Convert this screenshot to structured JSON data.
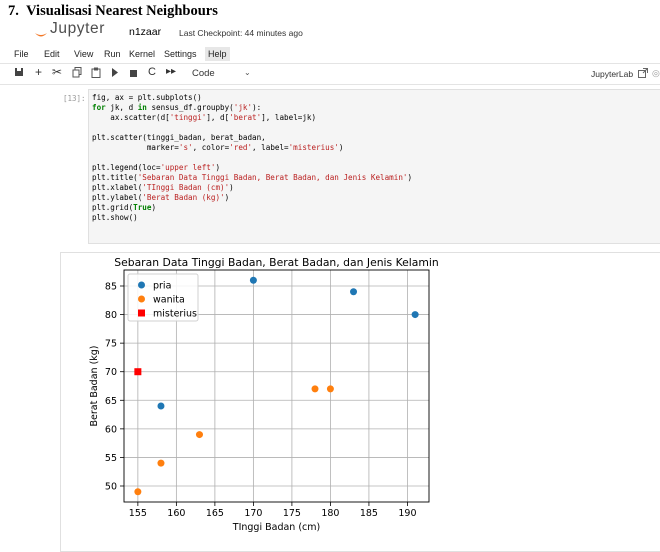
{
  "document": {
    "heading": "7.  Visualisasi Nearest Neighbours"
  },
  "header": {
    "logo_text": "Jupyter",
    "notebook_name": "n1zaar",
    "checkpoint": "Last Checkpoint: 44 minutes ago"
  },
  "menu": {
    "items": [
      "File",
      "Edit",
      "View",
      "Run",
      "Kernel",
      "Settings",
      "Help"
    ]
  },
  "toolbar": {
    "icons": [
      "save-icon",
      "add-cell-icon",
      "cut-icon",
      "copy-icon",
      "paste-icon",
      "run-icon",
      "stop-icon",
      "restart-icon",
      "fast-forward-icon"
    ],
    "cell_type": "Code",
    "kernel": "JupyterLab"
  },
  "cell": {
    "prompt": "[13]:",
    "code": [
      "fig, ax = plt.subplots()",
      "for jk, d in sensus_df.groupby('jk'):",
      "    ax.scatter(d['tinggi'], d['berat'], label=jk)",
      "",
      "plt.scatter(tinggi_badan, berat_badan,",
      "            marker='s', color='red', label='misterius')",
      "",
      "plt.legend(loc='upper left')",
      "plt.title('Sebaran Data Tinggi Badan, Berat Badan, dan Jenis Kelamin')",
      "plt.xlabel('TInggi Badan (cm)')",
      "plt.ylabel('Berat Badan (kg)')",
      "plt.grid(True)",
      "plt.show()"
    ]
  },
  "chart_data": {
    "type": "scatter",
    "title": "Sebaran Data Tinggi Badan, Berat Badan, dan Jenis Kelamin",
    "xlabel": "TInggi Badan (cm)",
    "ylabel": "Berat Badan (kg)",
    "xlim": [
      153.2,
      192.8
    ],
    "ylim": [
      47.2,
      87.8
    ],
    "xticks": [
      155,
      160,
      165,
      170,
      175,
      180,
      185,
      190
    ],
    "yticks": [
      50,
      55,
      60,
      65,
      70,
      75,
      80,
      85
    ],
    "grid": true,
    "legend_position": "upper left",
    "series": [
      {
        "name": "pria",
        "color": "#1f77b4",
        "marker": "circle",
        "x": [
          158,
          170,
          183,
          191
        ],
        "y": [
          64,
          86,
          84,
          80
        ]
      },
      {
        "name": "wanita",
        "color": "#ff7f0e",
        "marker": "circle",
        "x": [
          155,
          158,
          163,
          178,
          180
        ],
        "y": [
          49,
          54,
          59,
          67,
          67
        ]
      },
      {
        "name": "misterius",
        "color": "#ff0000",
        "marker": "square",
        "x": [
          155
        ],
        "y": [
          70
        ]
      }
    ]
  }
}
